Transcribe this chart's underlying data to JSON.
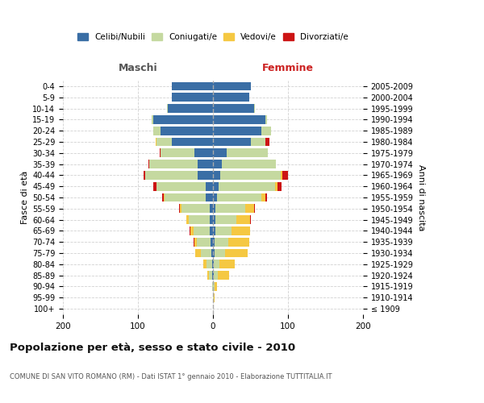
{
  "age_groups": [
    "100+",
    "95-99",
    "90-94",
    "85-89",
    "80-84",
    "75-79",
    "70-74",
    "65-69",
    "60-64",
    "55-59",
    "50-54",
    "45-49",
    "40-44",
    "35-39",
    "30-34",
    "25-29",
    "20-24",
    "15-19",
    "10-14",
    "5-9",
    "0-4"
  ],
  "birth_years": [
    "≤ 1909",
    "1910-1914",
    "1915-1919",
    "1920-1924",
    "1925-1929",
    "1930-1934",
    "1935-1939",
    "1940-1944",
    "1945-1949",
    "1950-1954",
    "1955-1959",
    "1960-1964",
    "1965-1969",
    "1970-1974",
    "1975-1979",
    "1980-1984",
    "1985-1989",
    "1990-1994",
    "1995-1999",
    "2000-2004",
    "2005-2009"
  ],
  "colors": {
    "celibi": "#3a6ea5",
    "coniugati": "#c5d9a0",
    "vedovi": "#f5c842",
    "divorziati": "#cc1414"
  },
  "males": {
    "celibi": [
      0,
      0,
      0,
      1,
      1,
      2,
      3,
      4,
      4,
      4,
      10,
      10,
      20,
      20,
      25,
      55,
      70,
      80,
      60,
      55,
      55
    ],
    "coniugati": [
      0,
      0,
      1,
      4,
      8,
      14,
      18,
      22,
      28,
      38,
      55,
      65,
      70,
      65,
      45,
      20,
      10,
      2,
      1,
      0,
      0
    ],
    "vedovi": [
      0,
      0,
      0,
      2,
      4,
      8,
      4,
      4,
      3,
      2,
      1,
      0,
      0,
      0,
      0,
      1,
      0,
      0,
      0,
      0,
      0
    ],
    "divorziati": [
      0,
      0,
      0,
      0,
      0,
      0,
      1,
      1,
      1,
      1,
      2,
      5,
      2,
      1,
      1,
      0,
      0,
      0,
      0,
      0,
      0
    ]
  },
  "females": {
    "nubili": [
      0,
      0,
      0,
      1,
      1,
      2,
      2,
      3,
      3,
      3,
      5,
      8,
      10,
      12,
      18,
      50,
      65,
      70,
      55,
      48,
      50
    ],
    "coniugate": [
      0,
      1,
      2,
      5,
      8,
      14,
      18,
      22,
      28,
      40,
      60,
      75,
      80,
      72,
      55,
      20,
      12,
      2,
      1,
      0,
      0
    ],
    "vedove": [
      0,
      1,
      3,
      15,
      20,
      30,
      28,
      24,
      18,
      12,
      5,
      3,
      2,
      0,
      0,
      0,
      0,
      0,
      0,
      0,
      0
    ],
    "divorziate": [
      0,
      0,
      0,
      0,
      0,
      0,
      0,
      0,
      1,
      1,
      2,
      5,
      8,
      0,
      0,
      5,
      0,
      0,
      0,
      0,
      0
    ]
  },
  "title": "Popolazione per età, sesso e stato civile - 2010",
  "subtitle": "COMUNE DI SAN VITO ROMANO (RM) - Dati ISTAT 1° gennaio 2010 - Elaborazione TUTTITALIA.IT",
  "maschi_label": "Maschi",
  "femmine_label": "Femmine",
  "ylabel_left": "Fasce di età",
  "ylabel_right": "Anni di nascita",
  "xlim": 200,
  "legend_labels": [
    "Celibi/Nubili",
    "Coniugati/e",
    "Vedovi/e",
    "Divorziati/e"
  ],
  "background_color": "#ffffff",
  "grid_color": "#cccccc"
}
